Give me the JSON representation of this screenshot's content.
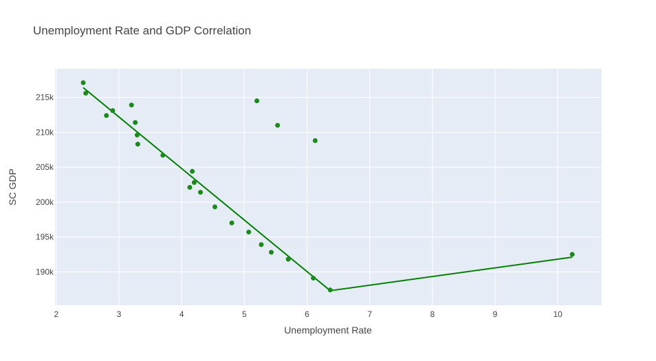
{
  "chart_data": {
    "type": "scatter",
    "title": "Unemployment Rate and GDP Correlation",
    "xlabel": "Unemployment Rate",
    "ylabel": "SC GDP",
    "xlim": [
      1.98,
      10.7
    ],
    "ylim": [
      185200,
      219100
    ],
    "x_ticks": [
      2,
      3,
      4,
      5,
      6,
      7,
      8,
      9,
      10
    ],
    "x_tick_labels": [
      "2",
      "3",
      "4",
      "5",
      "6",
      "7",
      "8",
      "9",
      "10"
    ],
    "y_ticks": [
      190000,
      195000,
      200000,
      205000,
      210000,
      215000
    ],
    "y_tick_labels": [
      "190k",
      "195k",
      "200k",
      "205k",
      "210k",
      "215k"
    ],
    "grid": true,
    "colors": {
      "marker": "#1a8a1a",
      "line": "#008000",
      "plot_bg": "#e5ecf6",
      "grid": "#ffffff"
    },
    "points": [
      {
        "x": 2.43,
        "y": 217100
      },
      {
        "x": 2.47,
        "y": 215600
      },
      {
        "x": 2.8,
        "y": 212400
      },
      {
        "x": 2.9,
        "y": 213100
      },
      {
        "x": 3.2,
        "y": 213900
      },
      {
        "x": 3.26,
        "y": 211400
      },
      {
        "x": 3.29,
        "y": 209600
      },
      {
        "x": 3.3,
        "y": 208300
      },
      {
        "x": 3.7,
        "y": 206700
      },
      {
        "x": 4.13,
        "y": 202100
      },
      {
        "x": 4.17,
        "y": 204400
      },
      {
        "x": 4.2,
        "y": 202800
      },
      {
        "x": 4.3,
        "y": 201400
      },
      {
        "x": 4.53,
        "y": 199300
      },
      {
        "x": 4.8,
        "y": 197000
      },
      {
        "x": 5.07,
        "y": 195700
      },
      {
        "x": 5.2,
        "y": 214500
      },
      {
        "x": 5.27,
        "y": 193900
      },
      {
        "x": 5.43,
        "y": 192800
      },
      {
        "x": 5.53,
        "y": 211000
      },
      {
        "x": 5.7,
        "y": 191800
      },
      {
        "x": 6.1,
        "y": 189100
      },
      {
        "x": 6.13,
        "y": 208800
      },
      {
        "x": 6.37,
        "y": 187400
      },
      {
        "x": 10.23,
        "y": 192500
      }
    ],
    "fit_line": [
      {
        "x": 2.43,
        "y": 216400
      },
      {
        "x": 6.37,
        "y": 187300
      },
      {
        "x": 10.23,
        "y": 192100
      }
    ]
  }
}
